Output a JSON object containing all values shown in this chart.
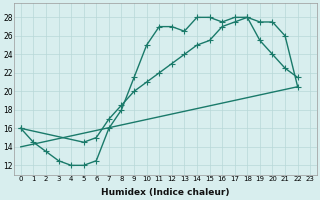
{
  "line1_x": [
    0,
    1,
    2,
    3,
    4,
    5,
    6,
    7,
    8,
    9,
    10,
    11,
    12,
    13,
    14,
    15,
    16,
    17,
    18,
    19,
    20,
    21,
    22
  ],
  "line1_y": [
    16.0,
    14.5,
    13.5,
    12.5,
    12.0,
    12.0,
    12.5,
    16.0,
    18.0,
    21.5,
    25.0,
    27.0,
    27.0,
    26.5,
    28.0,
    28.0,
    27.5,
    28.0,
    28.0,
    25.5,
    24.0,
    22.5,
    21.5
  ],
  "line2_x": [
    0,
    5,
    6,
    7,
    8,
    9,
    10,
    11,
    12,
    13,
    14,
    15,
    16,
    17,
    18,
    19,
    20,
    21,
    22
  ],
  "line2_y": [
    16.0,
    14.5,
    15.0,
    17.0,
    18.5,
    20.0,
    21.0,
    22.0,
    23.0,
    24.0,
    25.0,
    25.5,
    27.0,
    27.5,
    28.0,
    27.5,
    27.5,
    26.0,
    20.5
  ],
  "line3_x": [
    0,
    22
  ],
  "line3_y": [
    14.0,
    20.5
  ],
  "line_color": "#1a7a6a",
  "bg_color": "#d8eeee",
  "grid_color": "#b8d8d8",
  "xlabel": "Humidex (Indice chaleur)",
  "xlim": [
    -0.5,
    23.5
  ],
  "ylim": [
    11.0,
    29.5
  ],
  "yticks": [
    12,
    14,
    16,
    18,
    20,
    22,
    24,
    26,
    28
  ],
  "xticks": [
    0,
    1,
    2,
    3,
    4,
    5,
    6,
    7,
    8,
    9,
    10,
    11,
    12,
    13,
    14,
    15,
    16,
    17,
    18,
    19,
    20,
    21,
    22,
    23
  ],
  "markersize": 2.5,
  "linewidth": 1.0
}
